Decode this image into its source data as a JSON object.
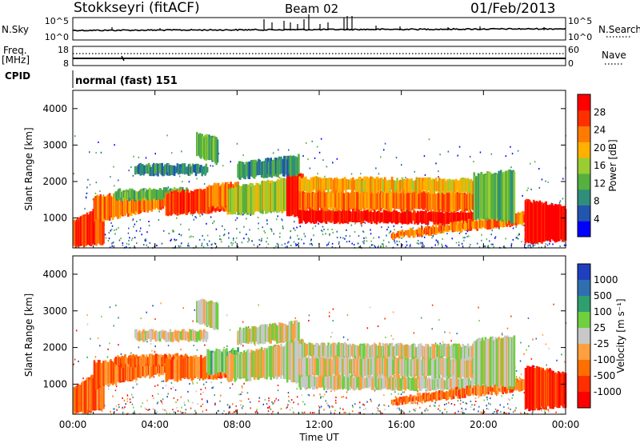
{
  "header": {
    "station": "Stokkseyri (fitACF)",
    "beam": "Beam 02",
    "date": "01/Feb/2013"
  },
  "left_labels": {
    "nsky": "N.Sky",
    "freq": "Freq.",
    "freq_unit": "[MHz]",
    "cpid": "CPID"
  },
  "right_labels": {
    "nsearch": "N.Search",
    "nave": "Nave"
  },
  "cpid_text": "normal (fast) 151",
  "chart_data": [
    {
      "type": "line",
      "name": "noise",
      "ylabels_left": [
        "10^5",
        "10^0"
      ],
      "ylabels_right": [
        "10^5",
        "10^0"
      ]
    },
    {
      "type": "line",
      "name": "frequency",
      "ylabels_left": [
        "18",
        "8"
      ],
      "ylabels_right": [
        "60",
        "0"
      ]
    },
    {
      "type": "heatmap",
      "name": "power",
      "ylabel": "Slant Range [km]",
      "yticks": [
        "1000",
        "2000",
        "3000",
        "4000"
      ],
      "colorbar_label": "Power [dB]",
      "colorbar_ticks": [
        "4",
        "8",
        "12",
        "16",
        "20",
        "24",
        "28"
      ],
      "colors": [
        "#0000ff",
        "#2255b0",
        "#2f8f7a",
        "#55b040",
        "#9acd32",
        "#ffb000",
        "#ff7a00",
        "#ff3000",
        "#ff0000"
      ]
    },
    {
      "type": "heatmap",
      "name": "velocity",
      "ylabel": "Slant Range [km]",
      "yticks": [
        "1000",
        "2000",
        "3000",
        "4000"
      ],
      "colorbar_label": "Velocity [m s⁻¹]",
      "colorbar_ticks": [
        "1000",
        "500",
        "100",
        "25",
        "-25",
        "-100",
        "-500",
        "-1000"
      ],
      "colors": [
        "#1f3fbf",
        "#2f6fb0",
        "#2f9f6f",
        "#6fcf3f",
        "#c8c8c8",
        "#ff9f3f",
        "#ff6f00",
        "#ff2f00",
        "#ff0000"
      ]
    }
  ],
  "xaxis": {
    "label": "Time UT",
    "ticks": [
      "00:00",
      "04:00",
      "08:00",
      "12:00",
      "16:00",
      "20:00",
      "00:00"
    ]
  }
}
